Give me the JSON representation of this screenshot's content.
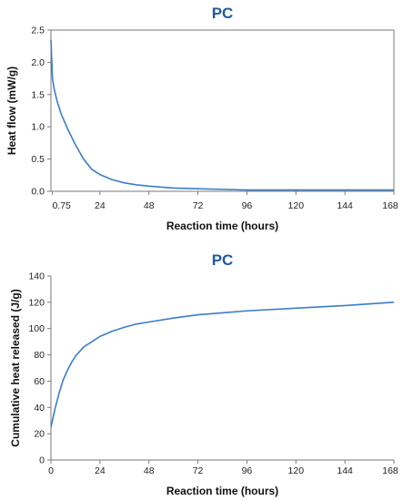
{
  "colors": {
    "title": "#1f5aa6",
    "line": "#3a7dc9",
    "axis": "#7a7a7a",
    "frame": "#7a7a7a"
  },
  "chart_data": [
    {
      "type": "line",
      "title": "PC",
      "xlabel": "Reaction time (hours)",
      "ylabel": "Heat flow (mW/g)",
      "x_ticks": [
        "0.75",
        "24",
        "48",
        "72",
        "96",
        "120",
        "144",
        "168"
      ],
      "y_ticks": [
        "0.0",
        "0.5",
        "1.0",
        "1.5",
        "2.0",
        "2.5"
      ],
      "xlim": [
        0,
        168
      ],
      "ylim": [
        0,
        2.5
      ],
      "grid": false,
      "series": [
        {
          "x": [
            0.0,
            0.3,
            0.75,
            1.5,
            3,
            5,
            8,
            12,
            16,
            20,
            24,
            30,
            36,
            42,
            48,
            60,
            72,
            84,
            96,
            120,
            144,
            168
          ],
          "values": [
            2.35,
            2.1,
            1.75,
            1.6,
            1.4,
            1.2,
            0.98,
            0.72,
            0.5,
            0.34,
            0.26,
            0.18,
            0.13,
            0.1,
            0.08,
            0.05,
            0.04,
            0.03,
            0.02,
            0.02,
            0.02,
            0.02
          ]
        }
      ]
    },
    {
      "type": "line",
      "title": "PC",
      "xlabel": "Reaction time (hours)",
      "ylabel": "Cumulative heat released (J/g)",
      "x_ticks": [
        "0",
        "24",
        "48",
        "72",
        "96",
        "120",
        "144",
        "168"
      ],
      "y_ticks": [
        "0",
        "20",
        "40",
        "60",
        "80",
        "100",
        "120",
        "140"
      ],
      "xlim": [
        0,
        168
      ],
      "ylim": [
        0,
        140
      ],
      "grid": false,
      "series": [
        {
          "x": [
            0,
            2,
            4,
            6,
            8,
            10,
            12,
            16,
            20,
            24,
            30,
            36,
            42,
            48,
            60,
            72,
            84,
            96,
            120,
            144,
            168
          ],
          "values": [
            25,
            39,
            51,
            61,
            68,
            74,
            79,
            86,
            90,
            94,
            98,
            101,
            103.5,
            105,
            108,
            110.5,
            112,
            113.5,
            115.5,
            117.5,
            120
          ]
        }
      ]
    }
  ]
}
